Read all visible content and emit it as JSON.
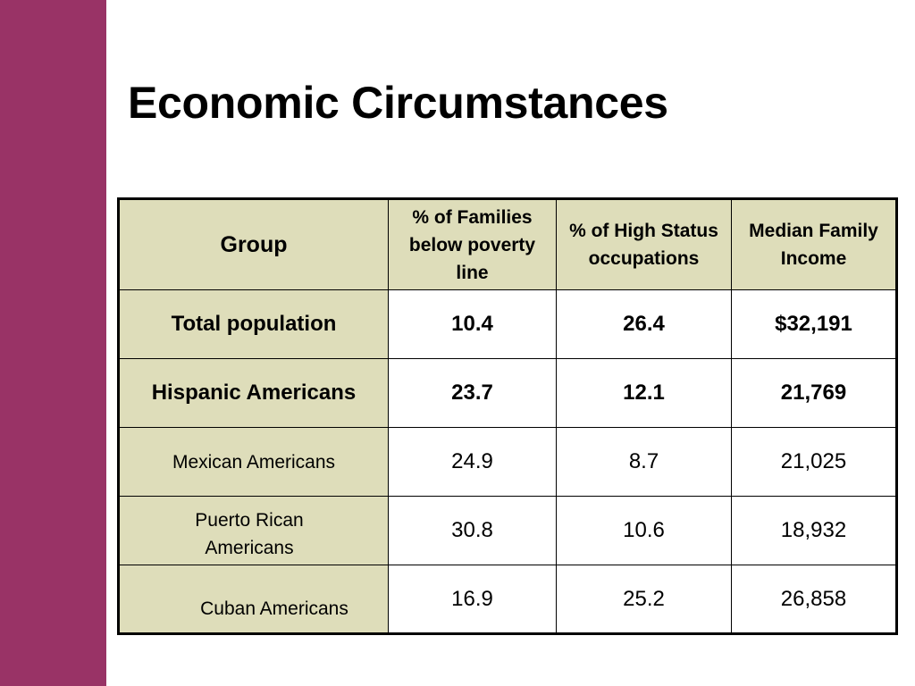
{
  "slide": {
    "title": "Economic Circumstances",
    "colors": {
      "side_bar": "#993366",
      "header_fill": "#deddba",
      "border": "#000000"
    }
  },
  "table": {
    "headers": {
      "group": "Group",
      "poverty": "% of Families below poverty line",
      "high_status": "% of High Status occupations",
      "income": "Median Family Income"
    },
    "rows": [
      {
        "group": "Total population",
        "poverty": "10.4",
        "high_status": "26.4",
        "income": "$32,191"
      },
      {
        "group": "Hispanic Americans",
        "poverty": "23.7",
        "high_status": "12.1",
        "income": "21,769"
      },
      {
        "group": "Mexican Americans",
        "poverty": "24.9",
        "high_status": "8.7",
        "income": "21,025"
      },
      {
        "group": "Puerto Rican Americans",
        "poverty": "30.8",
        "high_status": "10.6",
        "income": "18,932"
      },
      {
        "group": "Cuban Americans",
        "poverty": "16.9",
        "high_status": "25.2",
        "income": "26,858"
      }
    ]
  }
}
